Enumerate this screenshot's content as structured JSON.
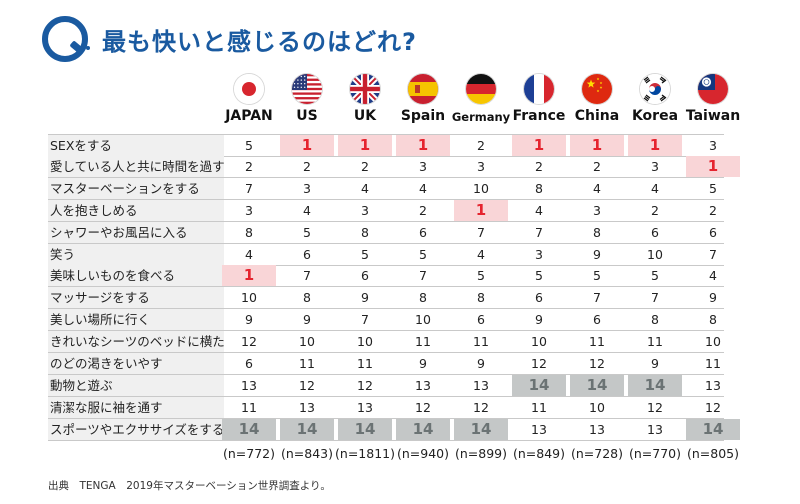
{
  "title": "最も快いと感じるのはどれ?",
  "countries": [
    {
      "name": "JAPAN",
      "flag": "japan-flag-icon",
      "sample": "(n=772)"
    },
    {
      "name": "US",
      "flag": "us-flag-icon",
      "sample": "(n=843)"
    },
    {
      "name": "UK",
      "flag": "uk-flag-icon",
      "sample": "(n=1811)"
    },
    {
      "name": "Spain",
      "flag": "spain-flag-icon",
      "sample": "(n=940)"
    },
    {
      "name": "Germany",
      "flag": "germany-flag-icon",
      "sample": "(n=899)"
    },
    {
      "name": "France",
      "flag": "france-flag-icon",
      "sample": "(n=849)"
    },
    {
      "name": "China",
      "flag": "china-flag-icon",
      "sample": "(n=728)"
    },
    {
      "name": "Korea",
      "flag": "korea-flag-icon",
      "sample": "(n=770)"
    },
    {
      "name": "Taiwan",
      "flag": "taiwan-flag-icon",
      "sample": "(n=805)"
    }
  ],
  "colors": {
    "title": "#1a5aa0",
    "top_rank_bg": "#f9d5d7",
    "top_rank_text": "#e5242f",
    "bottom_rank_bg": "#c4c7c7",
    "bottom_rank_text": "#6b7374",
    "label_bg": "#f0f0f0"
  },
  "chart_data": {
    "type": "table",
    "columns": [
      "JAPAN",
      "US",
      "UK",
      "Spain",
      "Germany",
      "France",
      "China",
      "Korea",
      "Taiwan"
    ],
    "rows": [
      {
        "label": "SEXをする",
        "values": [
          5,
          1,
          1,
          1,
          2,
          1,
          1,
          1,
          3
        ]
      },
      {
        "label": "愛している人と共に時間を過す",
        "values": [
          2,
          2,
          2,
          3,
          3,
          2,
          2,
          3,
          1
        ]
      },
      {
        "label": "マスターベーションをする",
        "values": [
          7,
          3,
          4,
          4,
          10,
          8,
          4,
          4,
          5
        ]
      },
      {
        "label": "人を抱きしめる",
        "values": [
          3,
          4,
          3,
          2,
          1,
          4,
          3,
          2,
          2
        ]
      },
      {
        "label": "シャワーやお風呂に入る",
        "values": [
          8,
          5,
          8,
          6,
          7,
          7,
          8,
          6,
          6
        ]
      },
      {
        "label": "笑う",
        "values": [
          4,
          6,
          5,
          5,
          4,
          3,
          9,
          10,
          7
        ]
      },
      {
        "label": "美味しいものを食べる",
        "values": [
          1,
          7,
          6,
          7,
          5,
          5,
          5,
          5,
          4
        ]
      },
      {
        "label": "マッサージをする",
        "values": [
          10,
          8,
          9,
          8,
          8,
          6,
          7,
          7,
          9
        ]
      },
      {
        "label": "美しい場所に行く",
        "values": [
          9,
          9,
          7,
          10,
          6,
          9,
          6,
          8,
          8
        ]
      },
      {
        "label": "きれいなシーツのベッドに横たわる",
        "values": [
          12,
          10,
          10,
          11,
          11,
          10,
          11,
          11,
          10
        ]
      },
      {
        "label": "のどの渇きをいやす",
        "values": [
          6,
          11,
          11,
          9,
          9,
          12,
          12,
          9,
          11
        ]
      },
      {
        "label": "動物と遊ぶ",
        "values": [
          13,
          12,
          12,
          13,
          13,
          14,
          14,
          14,
          13
        ]
      },
      {
        "label": "清潔な服に袖を通す",
        "values": [
          11,
          13,
          13,
          12,
          12,
          11,
          10,
          12,
          12
        ]
      },
      {
        "label": "スポーツやエクササイズをする",
        "values": [
          14,
          14,
          14,
          14,
          14,
          13,
          13,
          13,
          14
        ]
      }
    ],
    "highlight": {
      "top_rank": 1,
      "bottom_rank": 14
    }
  },
  "source": "出典　TENGA　2019年マスターベーション世界調査より。"
}
